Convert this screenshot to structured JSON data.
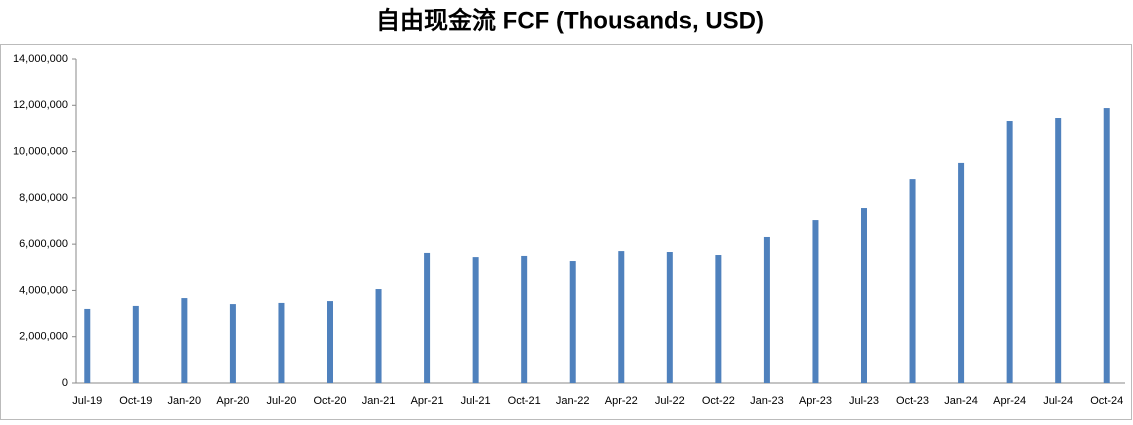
{
  "chart_data": {
    "type": "bar",
    "title": "自由现金流 FCF (Thousands, USD)",
    "categories": [
      "Jul-19",
      "Oct-19",
      "Jan-20",
      "Apr-20",
      "Jul-20",
      "Oct-20",
      "Jan-21",
      "Apr-21",
      "Jul-21",
      "Oct-21",
      "Jan-22",
      "Apr-22",
      "Jul-22",
      "Oct-22",
      "Jan-23",
      "Apr-23",
      "Jul-23",
      "Oct-23",
      "Jan-24",
      "Apr-24",
      "Jul-24",
      "Oct-24"
    ],
    "values": [
      3200000,
      3330000,
      3670000,
      3410000,
      3460000,
      3540000,
      4060000,
      5620000,
      5440000,
      5490000,
      5270000,
      5700000,
      5660000,
      5530000,
      6310000,
      7040000,
      7560000,
      8810000,
      9510000,
      11320000,
      11450000,
      11880000
    ],
    "color": "#4f81bd",
    "ylim": [
      0,
      14000000
    ],
    "yticks": [
      {
        "value": 0,
        "label": "0"
      },
      {
        "value": 2000000,
        "label": "2,000,000"
      },
      {
        "value": 4000000,
        "label": "4,000,000"
      },
      {
        "value": 6000000,
        "label": "6,000,000"
      },
      {
        "value": 8000000,
        "label": "8,000,000"
      },
      {
        "value": 10000000,
        "label": "10,000,000"
      },
      {
        "value": 12000000,
        "label": "12,000,000"
      },
      {
        "value": 14000000,
        "label": "14,000,000"
      }
    ],
    "grid": false
  }
}
